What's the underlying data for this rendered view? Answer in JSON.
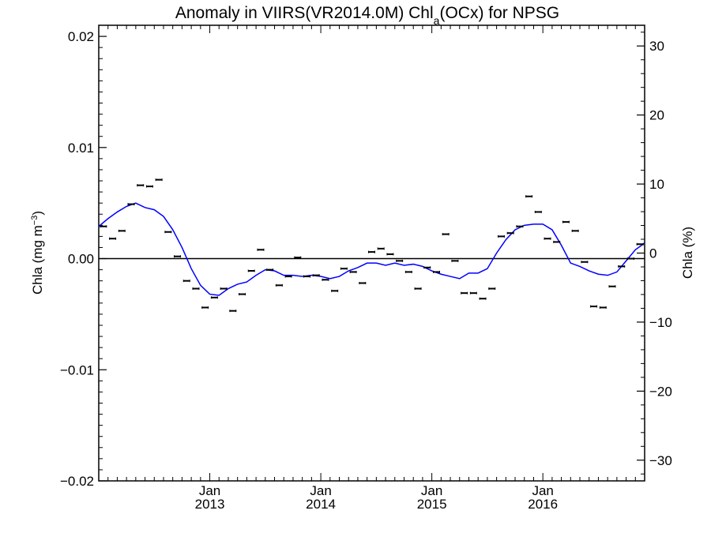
{
  "chart_data": {
    "type": "scatter",
    "title": {
      "prefix": "Anomaly in VIIRS(VR2014.0M) Chl",
      "subscript": "a",
      "suffix": "(OCx) for NPSG"
    },
    "ylabel_left": {
      "text": "Chla (mg m",
      "superscript": "−3",
      "close": ")"
    },
    "ylabel_right": "Chla (%)",
    "ylim_left": [
      -0.02,
      0.021
    ],
    "ylim_right": [
      -33,
      33
    ],
    "left_ticks": [
      {
        "value": 0.02,
        "label": "0.02"
      },
      {
        "value": 0.01,
        "label": "0.01"
      },
      {
        "value": 0.0,
        "label": "0.00"
      },
      {
        "value": -0.01,
        "label": "−0.01"
      },
      {
        "value": -0.02,
        "label": "−0.02"
      }
    ],
    "right_ticks": [
      {
        "value": 30,
        "label": "30"
      },
      {
        "value": 20,
        "label": "20"
      },
      {
        "value": 10,
        "label": "10"
      },
      {
        "value": 0,
        "label": "0"
      },
      {
        "value": -10,
        "label": "−10"
      },
      {
        "value": -20,
        "label": "−20"
      },
      {
        "value": -30,
        "label": "−30"
      }
    ],
    "x_ticks": [
      {
        "month": 12,
        "label_top": "Jan",
        "label_bottom": "2013"
      },
      {
        "month": 24,
        "label_top": "Jan",
        "label_bottom": "2014"
      },
      {
        "month": 36,
        "label_top": "Jan",
        "label_bottom": "2015"
      },
      {
        "month": 48,
        "label_top": "Jan",
        "label_bottom": "2016"
      }
    ],
    "x_range_months": [
      0,
      59
    ],
    "zero_line": 0,
    "series": [
      {
        "kind": "monthly_points",
        "color": "#000000",
        "x": [
          0.5,
          1.5,
          2.5,
          3.5,
          4.5,
          5.5,
          6.5,
          7.5,
          8.5,
          9.5,
          10.5,
          11.5,
          12.5,
          13.5,
          14.5,
          15.5,
          16.5,
          17.5,
          18.5,
          19.5,
          20.5,
          21.5,
          22.5,
          23.5,
          24.5,
          25.5,
          26.5,
          27.5,
          28.5,
          29.5,
          30.5,
          31.5,
          32.5,
          33.5,
          34.5,
          35.5,
          36.5,
          37.5,
          38.5,
          39.5,
          40.5,
          41.5,
          42.5,
          43.5,
          44.5,
          45.5,
          46.5,
          47.5,
          48.5,
          49.5,
          50.5,
          51.5,
          52.5,
          53.5,
          54.5,
          55.5,
          56.5,
          57.5,
          58.5
        ],
        "y": [
          0.0029,
          0.0018,
          0.0025,
          0.0049,
          0.0066,
          0.0065,
          0.0071,
          0.0024,
          0.0002,
          -0.002,
          -0.0027,
          -0.0044,
          -0.0035,
          -0.0027,
          -0.0047,
          -0.0032,
          -0.0011,
          0.0008,
          -0.001,
          -0.0024,
          -0.0016,
          0.0001,
          -0.0016,
          -0.0015,
          -0.0019,
          -0.0029,
          -0.0009,
          -0.0012,
          -0.0022,
          0.0006,
          0.0009,
          0.0004,
          -0.0002,
          -0.0012,
          -0.0027,
          -0.0008,
          -0.0012,
          0.0022,
          -0.0002,
          -0.0031,
          -0.0031,
          -0.0036,
          -0.0027,
          0.002,
          0.0023,
          0.0029,
          0.0056,
          0.0042,
          0.0018,
          0.0015,
          0.0033,
          0.0025,
          -0.0003,
          -0.0043,
          -0.0044,
          -0.0025,
          -0.0007,
          0.0,
          0.0013
        ]
      },
      {
        "kind": "smoothed_line",
        "color": "#0000ff",
        "x": [
          0,
          1,
          2,
          3,
          4,
          5,
          6,
          7,
          8,
          9,
          10,
          11,
          12,
          13,
          14,
          15,
          16,
          17,
          18,
          19,
          20,
          21,
          22,
          23,
          24,
          25,
          26,
          27,
          28,
          29,
          30,
          31,
          32,
          33,
          34,
          35,
          36,
          37,
          38,
          39,
          40,
          41,
          42,
          43,
          44,
          45,
          46,
          47,
          48,
          49,
          50,
          51,
          52,
          53,
          54,
          55,
          56,
          57,
          58,
          59
        ],
        "y": [
          0.0029,
          0.0036,
          0.0042,
          0.0047,
          0.005,
          0.0046,
          0.0044,
          0.0038,
          0.0026,
          0.001,
          -0.0009,
          -0.0024,
          -0.0032,
          -0.0033,
          -0.0027,
          -0.0023,
          -0.0021,
          -0.0015,
          -0.001,
          -0.0011,
          -0.0015,
          -0.0015,
          -0.0016,
          -0.0015,
          -0.0016,
          -0.0018,
          -0.0016,
          -0.0011,
          -0.0008,
          -0.0004,
          -0.0004,
          -0.0006,
          -0.0004,
          -0.0006,
          -0.0005,
          -0.0007,
          -0.0011,
          -0.0014,
          -0.0016,
          -0.0018,
          -0.0013,
          -0.0013,
          -0.0009,
          0.0005,
          0.0017,
          0.0026,
          0.003,
          0.0031,
          0.0031,
          0.0026,
          0.0012,
          -0.0004,
          -0.0007,
          -0.0011,
          -0.0014,
          -0.0015,
          -0.0012,
          -0.0002,
          0.0008,
          0.0014
        ]
      }
    ]
  }
}
